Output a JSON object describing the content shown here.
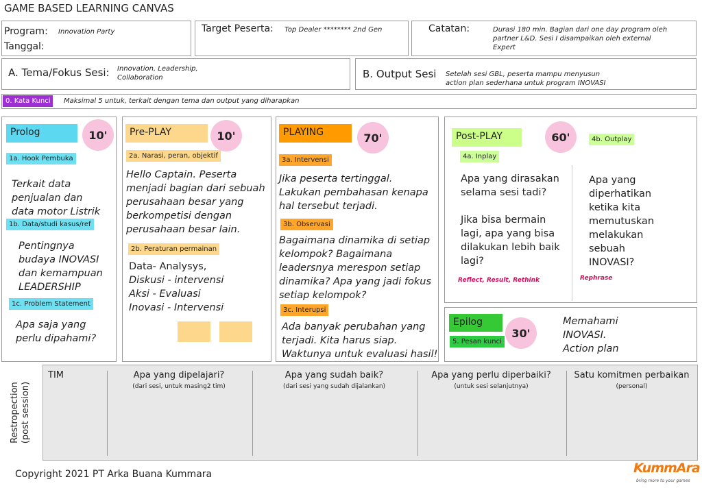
{
  "title": "GAME BASED LEARNING CANVAS",
  "header": {
    "program_label": "Program:",
    "program_value": "Innovation Party",
    "date_label": "Tanggal:",
    "target_label": "Target Peserta:",
    "target_value": "Top Dealer ******** 2nd Gen",
    "notes_label": "Catatan:",
    "notes_value": "Durasi 180 min. Bagian dari one day program oleh partner L&D. Sesi I disampaikan oleh external Expert"
  },
  "theme": {
    "label": "A. Tema/Fokus Sesi:",
    "value": "Innovation, Leadership, Collaboration"
  },
  "output": {
    "label": "B. Output Sesi",
    "value": "Setelah sesi GBL, peserta mampu  menyusun action plan sederhana untuk program INOVASI"
  },
  "keywords": {
    "tag": "0. Kata Kunci",
    "text": "Maksimal 5 untuk, terkait dengan tema dan output yang diharapkan"
  },
  "prolog": {
    "title": "Prolog",
    "time": "10'",
    "items": [
      {
        "tag": "1a. Hook Pembuka",
        "text": "Terkait data penjualan dan data motor Listrik"
      },
      {
        "tag": "1b. Data/studi kasus/ref",
        "text": "Pentingnya budaya INOVASI dan kemampuan LEADERSHIP"
      },
      {
        "tag": "1c. Problem Statement",
        "text": "Apa saja yang perlu dipahami?"
      }
    ]
  },
  "preplay": {
    "title": "Pre-PLAY",
    "time": "10'",
    "items": [
      {
        "tag": "2a. Narasi, peran, objektif",
        "text": "Hello Captain. Peserta menjadi bagian dari sebuah perusahaan besar yang berkompetisi dengan perusahaan besar lain."
      },
      {
        "tag": "2b. Peraturan permainan",
        "lines": [
          "Data- Analysys,",
          "Diskusi - intervensi",
          "Aksi - Evaluasi",
          "Inovasi - Intervensi"
        ]
      }
    ]
  },
  "playing": {
    "title": "PLAYING",
    "time": "70'",
    "items": [
      {
        "tag": "3a. Intervensi",
        "text": "Jika peserta tertinggal. Lakukan pembahasan kenapa hal tersebut terjadi."
      },
      {
        "tag": "3b. Observasi",
        "text": "Bagaimana dinamika di setiap kelompok? Bagaimana leadersnya merespon setiap dinamika? Apa yang jadi fokus setiap kelompok?"
      },
      {
        "tag": "3c. Interupsi",
        "text": "Ada banyak perubahan yang terjadi. Kita harus siap. Waktunya untuk evaluasi hasil!"
      }
    ]
  },
  "postplay": {
    "title": "Post-PLAY",
    "time": "60'",
    "inplay": {
      "tag": "4a. Inplay",
      "questions": [
        "Apa yang dirasakan selama sesi tadi?",
        "Jika bisa bermain lagi, apa yang bisa dilakukan lebih baik lagi?"
      ],
      "note": "Reflect, Result, Rethink"
    },
    "outplay": {
      "tag": "4b. Outplay",
      "text": "Apa yang diperhatikan ketika kita memutuskan melakukan sebuah INOVASI?",
      "note": "Rephrase"
    }
  },
  "epilog": {
    "title": "Epilog",
    "tag": "5. Pesan kunci",
    "time": "30'",
    "text": "Memahami INOVASI. Action plan"
  },
  "retrospection": {
    "label": "Restropection (post session)",
    "columns": [
      {
        "title": "TIM"
      },
      {
        "title": "Apa yang dipelajari?",
        "hint": "(dari sesi, untuk masing2 tim)"
      },
      {
        "title": "Apa yang sudah baik?",
        "hint": "(dari sesi yang sudah dijalankan)"
      },
      {
        "title": "Apa yang perlu diperbaiki?",
        "hint": "(untuk sesi selanjutnya)"
      },
      {
        "title": "Satu komitmen perbaikan",
        "hint": "(personal)"
      }
    ]
  },
  "footer": {
    "copyright": "Copyright 2021 PT Arka Buana Kummara",
    "logo": "KummAra",
    "tagline": "bring more to your games"
  }
}
